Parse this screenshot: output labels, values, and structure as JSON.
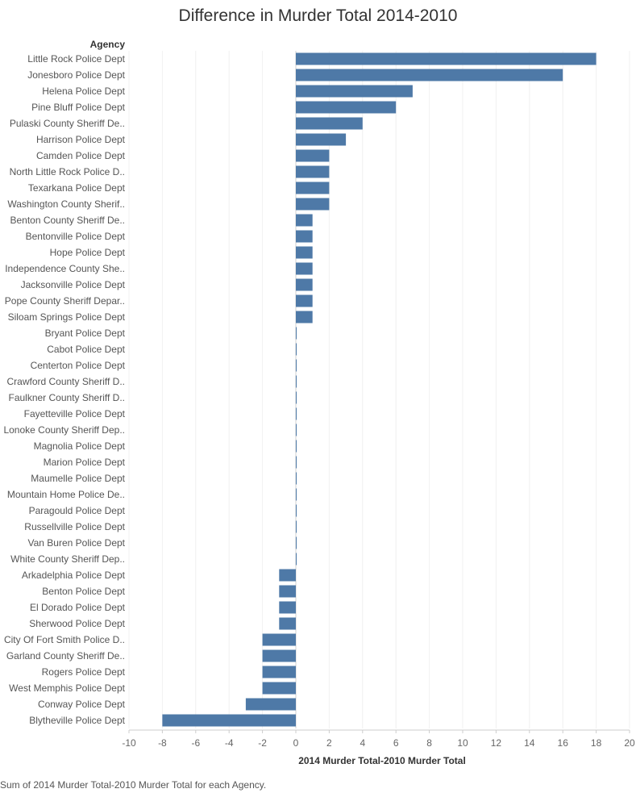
{
  "chart_data": {
    "type": "bar",
    "orientation": "horizontal",
    "title": "Difference in Murder Total 2014-2010",
    "row_header": "Agency",
    "xlabel": "2014 Murder Total-2010 Murder Total",
    "xlim": [
      -10,
      20
    ],
    "xticks": [
      -10,
      -8,
      -6,
      -4,
      -2,
      0,
      2,
      4,
      6,
      8,
      10,
      12,
      14,
      16,
      18,
      20
    ],
    "grid": "vertical",
    "bar_color": "#4e79a7",
    "categories": [
      "Little Rock Police Dept",
      "Jonesboro Police Dept",
      "Helena Police Dept",
      "Pine Bluff Police Dept",
      "Pulaski County Sheriff De..",
      "Harrison Police Dept",
      "Camden Police Dept",
      "North Little Rock Police D..",
      "Texarkana Police Dept",
      "Washington County Sherif..",
      "Benton County Sheriff De..",
      "Bentonville Police Dept",
      "Hope Police Dept",
      "Independence County She..",
      "Jacksonville Police Dept",
      "Pope County Sheriff Depar..",
      "Siloam Springs Police Dept",
      "Bryant Police Dept",
      "Cabot Police Dept",
      "Centerton Police Dept",
      "Crawford County Sheriff D..",
      "Faulkner County Sheriff D..",
      "Fayetteville Police Dept",
      "Lonoke County Sheriff Dep..",
      "Magnolia Police Dept",
      "Marion Police Dept",
      "Maumelle Police Dept",
      "Mountain Home Police De..",
      "Paragould Police Dept",
      "Russellville Police Dept",
      "Van Buren Police Dept",
      "White County Sheriff Dep..",
      "Arkadelphia Police Dept",
      "Benton Police Dept",
      "El Dorado Police Dept",
      "Sherwood Police Dept",
      "City Of Fort Smith Police D..",
      "Garland County Sheriff De..",
      "Rogers Police Dept",
      "West Memphis Police Dept",
      "Conway Police Dept",
      "Blytheville Police Dept"
    ],
    "values": [
      18,
      16,
      7,
      6,
      4,
      3,
      2,
      2,
      2,
      2,
      1,
      1,
      1,
      1,
      1,
      1,
      1,
      0,
      0,
      0,
      0,
      0,
      0,
      0,
      0,
      0,
      0,
      0,
      0,
      0,
      0,
      0,
      -1,
      -1,
      -1,
      -1,
      -2,
      -2,
      -2,
      -2,
      -3,
      -8
    ]
  },
  "caption": "Sum of 2014 Murder Total-2010 Murder Total for each Agency."
}
